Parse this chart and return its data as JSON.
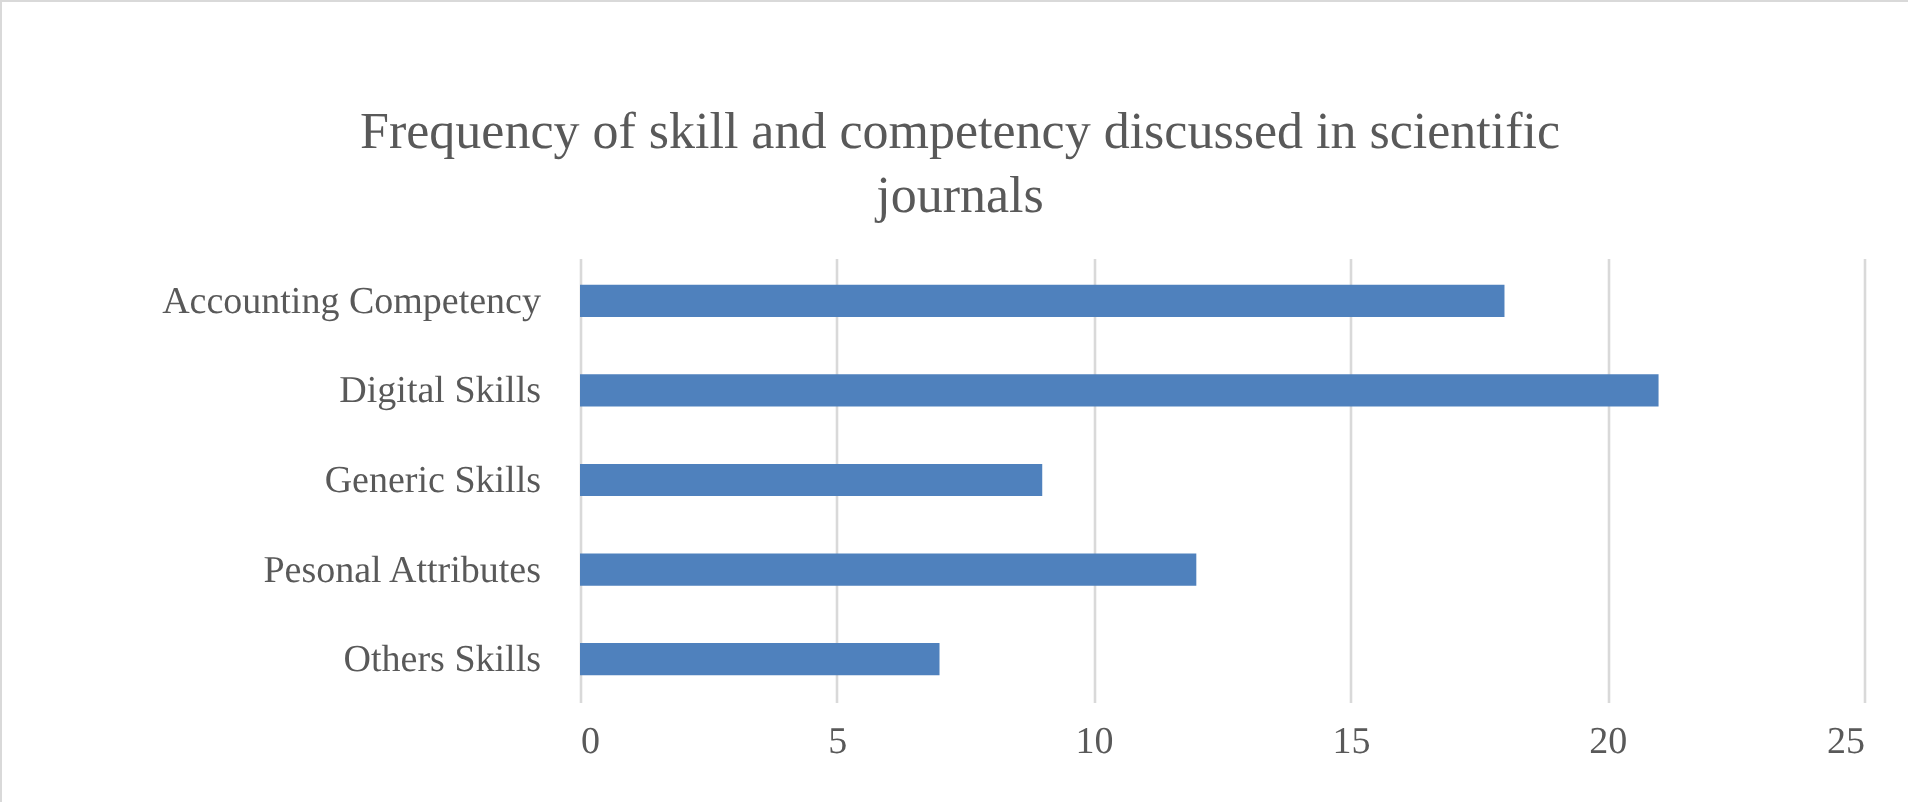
{
  "chart_data": {
    "type": "bar",
    "orientation": "horizontal",
    "title": "Frequency of skill and competency discussed in scientific journals",
    "categories": [
      "Accounting Competency",
      "Digital Skills",
      "Generic Skills",
      "Pesonal Attributes",
      "Others Skills"
    ],
    "values": [
      18,
      21,
      9,
      12,
      7
    ],
    "color": "#4f81bd",
    "xlim": [
      0,
      25
    ],
    "xticks": [
      0,
      5,
      10,
      15,
      20,
      25
    ],
    "grid": "x"
  }
}
